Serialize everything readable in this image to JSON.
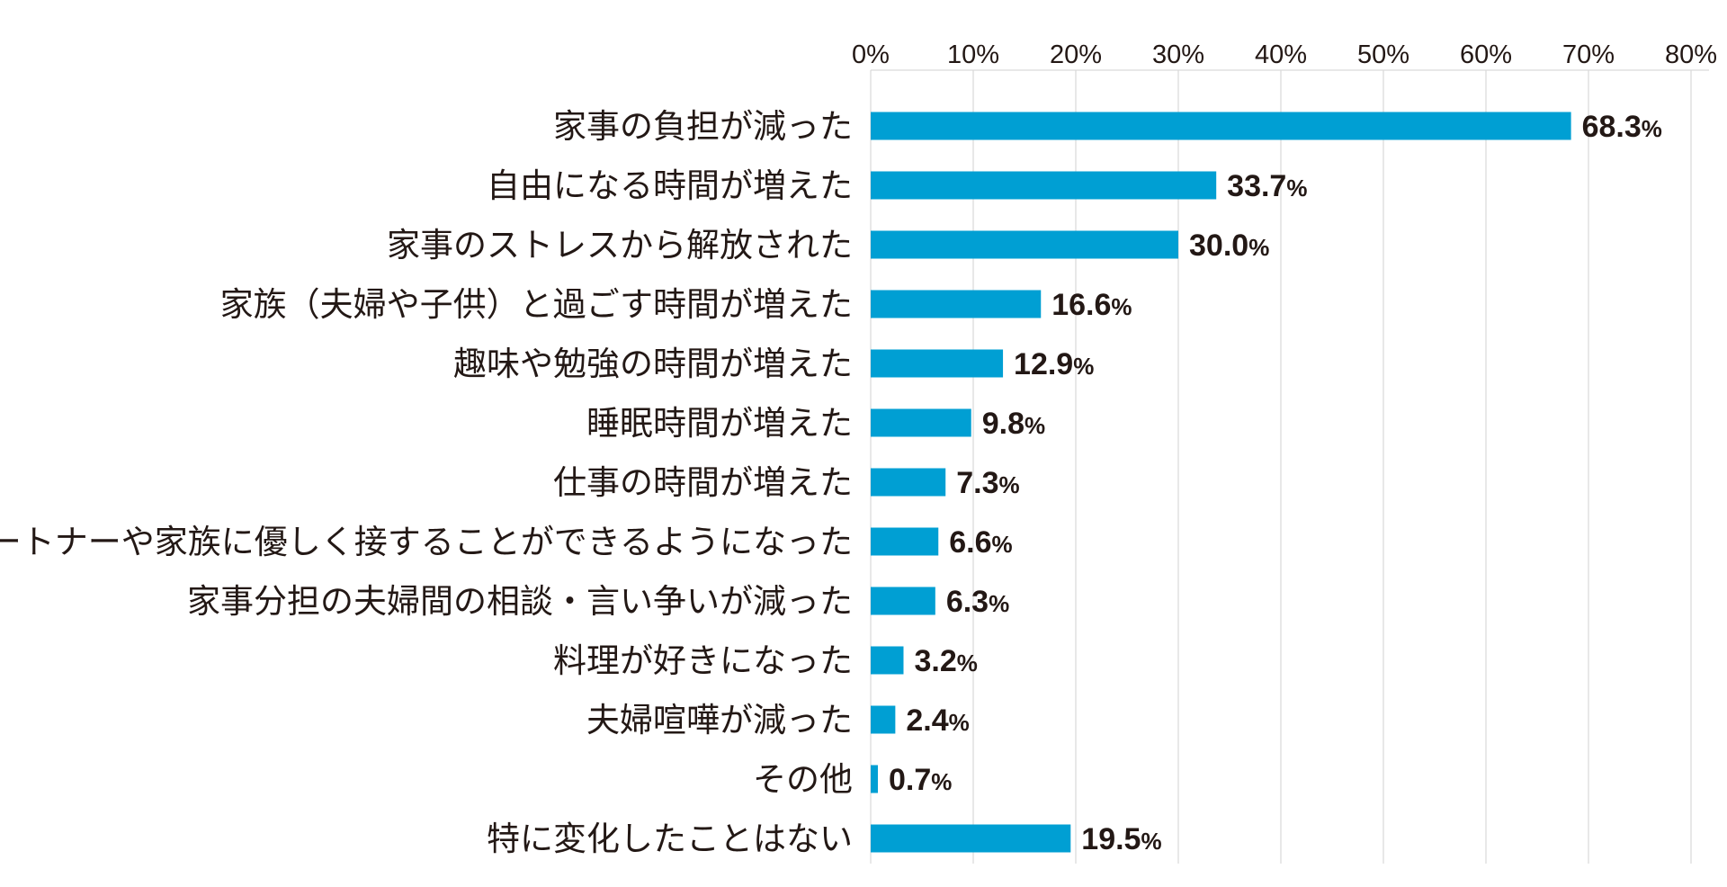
{
  "chart_data": {
    "type": "bar",
    "orientation": "horizontal",
    "categories": [
      "家事の負担が減った",
      "自由になる時間が増えた",
      "家事のストレスから解放された",
      "家族（夫婦や子供）と過ごす時間が増えた",
      "趣味や勉強の時間が増えた",
      "睡眠時間が増えた",
      "仕事の時間が増えた",
      "パートナーや家族に優しく接することができるようになった",
      "家事分担の夫婦間の相談・言い争いが減った",
      "料理が好きになった",
      "夫婦喧嘩が減った",
      "その他",
      "特に変化したことはない"
    ],
    "values": [
      68.3,
      33.7,
      30.0,
      16.6,
      12.9,
      9.8,
      7.3,
      6.6,
      6.3,
      3.2,
      2.4,
      0.7,
      19.5
    ],
    "value_labels": [
      "68.3",
      "33.7",
      "30.0",
      "16.6",
      "12.9",
      "9.8",
      "7.3",
      "6.6",
      "6.3",
      "3.2",
      "2.4",
      "0.7",
      "19.5"
    ],
    "value_unit": "%",
    "x_ticks": [
      0,
      10,
      20,
      30,
      40,
      50,
      60,
      70,
      80
    ],
    "x_tick_labels": [
      "0%",
      "10%",
      "20%",
      "30%",
      "40%",
      "50%",
      "60%",
      "70%",
      "80%"
    ],
    "xlim": [
      0,
      80
    ],
    "axis_position": "top",
    "grid": true,
    "title": "",
    "xlabel": "",
    "ylabel": "",
    "colors": {
      "bar": "#009fd3",
      "grid": "#d9d9d9",
      "text": "#231815"
    }
  }
}
